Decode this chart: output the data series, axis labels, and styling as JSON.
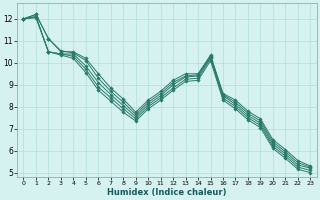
{
  "xlabel": "Humidex (Indice chaleur)",
  "bg_color": "#d5f2f0",
  "grid_color": "#b0ddd8",
  "line_color": "#2a7a6a",
  "xlim": [
    -0.5,
    23.5
  ],
  "ylim": [
    4.8,
    12.7
  ],
  "yticks": [
    5,
    6,
    7,
    8,
    9,
    10,
    11,
    12
  ],
  "xticks": [
    0,
    1,
    2,
    3,
    4,
    5,
    6,
    7,
    8,
    9,
    10,
    11,
    12,
    13,
    14,
    15,
    16,
    17,
    18,
    19,
    20,
    21,
    22,
    23
  ],
  "series": [
    {
      "x": [
        0,
        1,
        2,
        3,
        4,
        5,
        6,
        7,
        8,
        9,
        10,
        11,
        12,
        13,
        14,
        15,
        16,
        17,
        18,
        19,
        20,
        21,
        22,
        23
      ],
      "y": [
        12.0,
        12.2,
        11.1,
        10.5,
        10.5,
        10.2,
        9.5,
        8.85,
        8.35,
        7.75,
        8.3,
        8.7,
        9.2,
        9.5,
        9.5,
        10.35,
        8.6,
        8.3,
        7.8,
        7.45,
        6.5,
        6.05,
        5.55,
        5.3
      ]
    },
    {
      "x": [
        0,
        1,
        2,
        3,
        4,
        5,
        6,
        7,
        8,
        9,
        10,
        11,
        12,
        13,
        14,
        15,
        16,
        17,
        18,
        19,
        20,
        21,
        22,
        23
      ],
      "y": [
        12.0,
        12.2,
        11.1,
        10.55,
        10.45,
        10.1,
        9.3,
        8.7,
        8.2,
        7.65,
        8.2,
        8.6,
        9.1,
        9.4,
        9.45,
        10.3,
        8.55,
        8.2,
        7.7,
        7.35,
        6.4,
        5.95,
        5.45,
        5.25
      ]
    },
    {
      "x": [
        0,
        1,
        2,
        3,
        4,
        5,
        6,
        7,
        8,
        9,
        10,
        11,
        12,
        13,
        14,
        15,
        16,
        17,
        18,
        19,
        20,
        21,
        22,
        23
      ],
      "y": [
        12.0,
        12.1,
        10.5,
        10.4,
        10.4,
        9.85,
        9.1,
        8.55,
        8.05,
        7.55,
        8.1,
        8.5,
        9.0,
        9.35,
        9.4,
        10.25,
        8.5,
        8.1,
        7.6,
        7.25,
        6.3,
        5.85,
        5.35,
        5.2
      ]
    },
    {
      "x": [
        0,
        1,
        2,
        3,
        4,
        5,
        6,
        7,
        8,
        9,
        10,
        11,
        12,
        13,
        14,
        15,
        16,
        17,
        18,
        19,
        20,
        21,
        22,
        23
      ],
      "y": [
        12.0,
        12.1,
        10.5,
        10.4,
        10.3,
        9.7,
        8.9,
        8.4,
        7.9,
        7.45,
        8.0,
        8.4,
        8.85,
        9.25,
        9.3,
        10.2,
        8.4,
        8.0,
        7.5,
        7.15,
        6.2,
        5.75,
        5.25,
        5.1
      ]
    },
    {
      "x": [
        0,
        1,
        2,
        3,
        4,
        5,
        6,
        7,
        8,
        9,
        10,
        11,
        12,
        13,
        14,
        15,
        16,
        17,
        18,
        19,
        20,
        21,
        22,
        23
      ],
      "y": [
        12.0,
        12.05,
        10.5,
        10.35,
        10.2,
        9.55,
        8.75,
        8.25,
        7.75,
        7.35,
        7.9,
        8.3,
        8.75,
        9.15,
        9.2,
        10.1,
        8.3,
        7.9,
        7.4,
        7.05,
        6.1,
        5.65,
        5.15,
        5.0
      ]
    }
  ]
}
